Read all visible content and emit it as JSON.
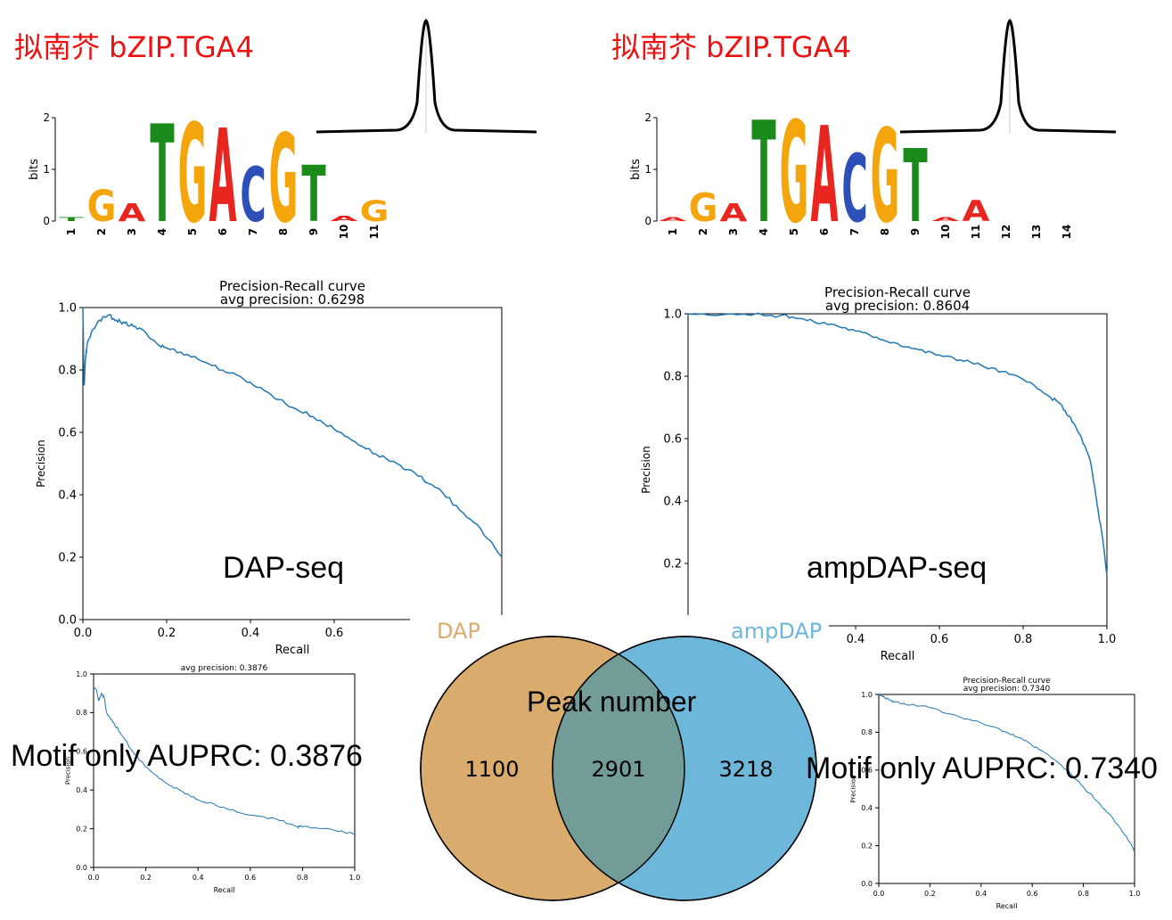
{
  "titles": {
    "left": "拟南芥 bZIP.TGA4",
    "right": "拟南芥 bZIP.TGA4"
  },
  "logos": {
    "left": {
      "ylabel": "bits",
      "yticks": [
        "0",
        "1",
        "2"
      ],
      "positions": [
        "1",
        "2",
        "3",
        "4",
        "5",
        "6",
        "7",
        "8",
        "9",
        "10",
        "11"
      ],
      "letters": [
        "T",
        "G",
        "A",
        "T",
        "G",
        "A",
        "C",
        "G",
        "T",
        "A",
        "G"
      ]
    },
    "right": {
      "ylabel": "bits",
      "yticks": [
        "0",
        "1",
        "2"
      ],
      "positions": [
        "1",
        "2",
        "3",
        "4",
        "5",
        "6",
        "7",
        "8",
        "9",
        "10",
        "11",
        "12",
        "13",
        "14"
      ],
      "letters": [
        "A",
        "G",
        "A",
        "T",
        "G",
        "A",
        "C",
        "G",
        "T",
        "A",
        "A"
      ]
    }
  },
  "labels": {
    "dap_seq": "DAP-seq",
    "ampdap_seq": "ampDAP-seq",
    "motif_left": "Motif only AUPRC: 0.3876",
    "motif_right": "Motif only AUPRC: 0.7340"
  },
  "venn": {
    "label_left": "DAP",
    "label_right": "ampDAP",
    "title": "Peak number",
    "left_only": "1100",
    "overlap": "2901",
    "right_only": "3218",
    "color_left": "#d9ab6d",
    "color_right": "#6db8da",
    "color_overlap": "#729c98"
  },
  "chart_data": [
    {
      "id": "pr_dap",
      "type": "line",
      "title": "Precision-Recall curve",
      "subtitle": "avg precision: 0.6298",
      "xlabel": "Recall",
      "ylabel": "Precision",
      "xlim": [
        0,
        1
      ],
      "ylim": [
        0,
        1
      ],
      "xticks": [
        "0.0",
        "0.2",
        "0.4",
        "0.6"
      ],
      "yticks": [
        "0.0",
        "0.2",
        "0.4",
        "0.6",
        "0.8",
        "1.0"
      ],
      "color": "#1f77b4",
      "x": [
        0,
        0.003,
        0.006,
        0.01,
        0.02,
        0.04,
        0.06,
        0.08,
        0.1,
        0.12,
        0.15,
        0.18,
        0.2,
        0.25,
        0.3,
        0.35,
        0.4,
        0.45,
        0.5,
        0.55,
        0.6,
        0.65,
        0.7,
        0.75,
        0.8,
        0.85,
        0.9,
        0.95,
        1.0
      ],
      "y": [
        1.0,
        0.75,
        0.83,
        0.88,
        0.92,
        0.96,
        0.975,
        0.96,
        0.95,
        0.94,
        0.92,
        0.88,
        0.87,
        0.85,
        0.82,
        0.79,
        0.76,
        0.72,
        0.68,
        0.65,
        0.61,
        0.57,
        0.53,
        0.5,
        0.46,
        0.42,
        0.35,
        0.29,
        0.2
      ]
    },
    {
      "id": "pr_ampdap",
      "type": "line",
      "title": "Precision-Recall curve",
      "subtitle": "avg precision: 0.8604",
      "xlabel": "Recall",
      "ylabel": "Precision",
      "xlim": [
        0,
        1
      ],
      "ylim": [
        0,
        1
      ],
      "xticks": [
        "0.4",
        "0.6",
        "0.8",
        "1.0"
      ],
      "yticks": [
        "0.2",
        "0.4",
        "0.6",
        "0.8",
        "1.0"
      ],
      "color": "#1f77b4",
      "x": [
        0,
        0.1,
        0.2,
        0.25,
        0.3,
        0.35,
        0.4,
        0.45,
        0.5,
        0.55,
        0.6,
        0.65,
        0.7,
        0.75,
        0.8,
        0.85,
        0.88,
        0.9,
        0.92,
        0.94,
        0.96,
        0.97,
        0.98,
        0.99,
        1.0
      ],
      "y": [
        1.0,
        1.0,
        0.995,
        0.99,
        0.975,
        0.965,
        0.945,
        0.925,
        0.905,
        0.885,
        0.868,
        0.852,
        0.835,
        0.815,
        0.79,
        0.745,
        0.72,
        0.69,
        0.65,
        0.6,
        0.53,
        0.45,
        0.36,
        0.28,
        0.16
      ]
    },
    {
      "id": "pr_motif_left",
      "type": "line",
      "title": "",
      "subtitle": "avg precision: 0.3876",
      "xlabel": "Recall",
      "ylabel": "Precision",
      "xlim": [
        0,
        1
      ],
      "ylim": [
        0,
        1
      ],
      "xticks": [
        "0.0",
        "0.2",
        "0.4",
        "0.6",
        "0.8",
        "1.0"
      ],
      "yticks": [
        "0.0",
        "0.2",
        "0.4",
        "0.6",
        "0.8",
        "1.0"
      ],
      "color": "#1f77b4",
      "x": [
        0,
        0.01,
        0.02,
        0.03,
        0.04,
        0.05,
        0.06,
        0.08,
        0.1,
        0.12,
        0.15,
        0.18,
        0.2,
        0.25,
        0.3,
        0.35,
        0.4,
        0.5,
        0.6,
        0.7,
        0.78,
        0.8,
        0.9,
        1.0
      ],
      "y": [
        0.93,
        0.92,
        0.86,
        0.9,
        0.88,
        0.8,
        0.78,
        0.74,
        0.7,
        0.66,
        0.6,
        0.55,
        0.52,
        0.46,
        0.42,
        0.38,
        0.35,
        0.31,
        0.27,
        0.25,
        0.21,
        0.21,
        0.2,
        0.17
      ]
    },
    {
      "id": "pr_motif_right",
      "type": "line",
      "title": "Precision-Recall curve",
      "subtitle": "avg precision: 0.7340",
      "xlabel": "Recall",
      "ylabel": "Precision",
      "xlim": [
        0,
        1
      ],
      "ylim": [
        0,
        1
      ],
      "xticks": [
        "0.0",
        "0.2",
        "0.4",
        "0.6",
        "0.8",
        "1.0"
      ],
      "yticks": [
        "0.0",
        "0.2",
        "0.4",
        "0.6",
        "0.8",
        "1.0"
      ],
      "color": "#1f77b4",
      "x": [
        0,
        0.02,
        0.04,
        0.06,
        0.1,
        0.2,
        0.3,
        0.4,
        0.5,
        0.55,
        0.6,
        0.65,
        0.7,
        0.75,
        0.8,
        0.85,
        0.9,
        0.95,
        0.98,
        1.0
      ],
      "y": [
        1.0,
        0.99,
        0.97,
        0.96,
        0.95,
        0.93,
        0.89,
        0.85,
        0.8,
        0.77,
        0.73,
        0.69,
        0.64,
        0.58,
        0.51,
        0.44,
        0.37,
        0.28,
        0.22,
        0.17
      ]
    }
  ]
}
